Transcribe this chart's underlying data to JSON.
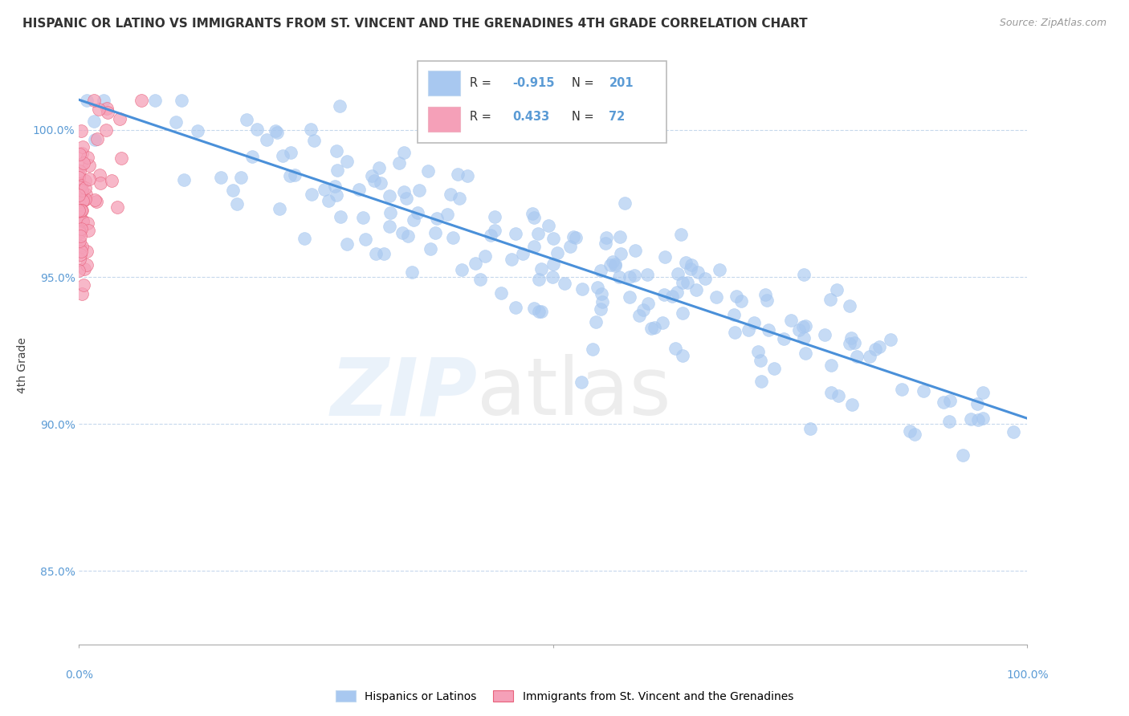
{
  "title": "HISPANIC OR LATINO VS IMMIGRANTS FROM ST. VINCENT AND THE GRENADINES 4TH GRADE CORRELATION CHART",
  "source": "Source: ZipAtlas.com",
  "ylabel": "4th Grade",
  "blue_color": "#a8c8f0",
  "blue_line_color": "#4a90d9",
  "pink_color": "#f5a0b8",
  "pink_dot_color": "#e8607a",
  "xlim": [
    0.0,
    1.0
  ],
  "ylim": [
    82.5,
    101.5
  ],
  "title_fontsize": 11,
  "source_fontsize": 9,
  "blue_R": "-0.915",
  "blue_N": "201",
  "pink_R": "0.433",
  "pink_N": "72",
  "blue_scatter_seed": 42,
  "pink_scatter_seed": 7
}
